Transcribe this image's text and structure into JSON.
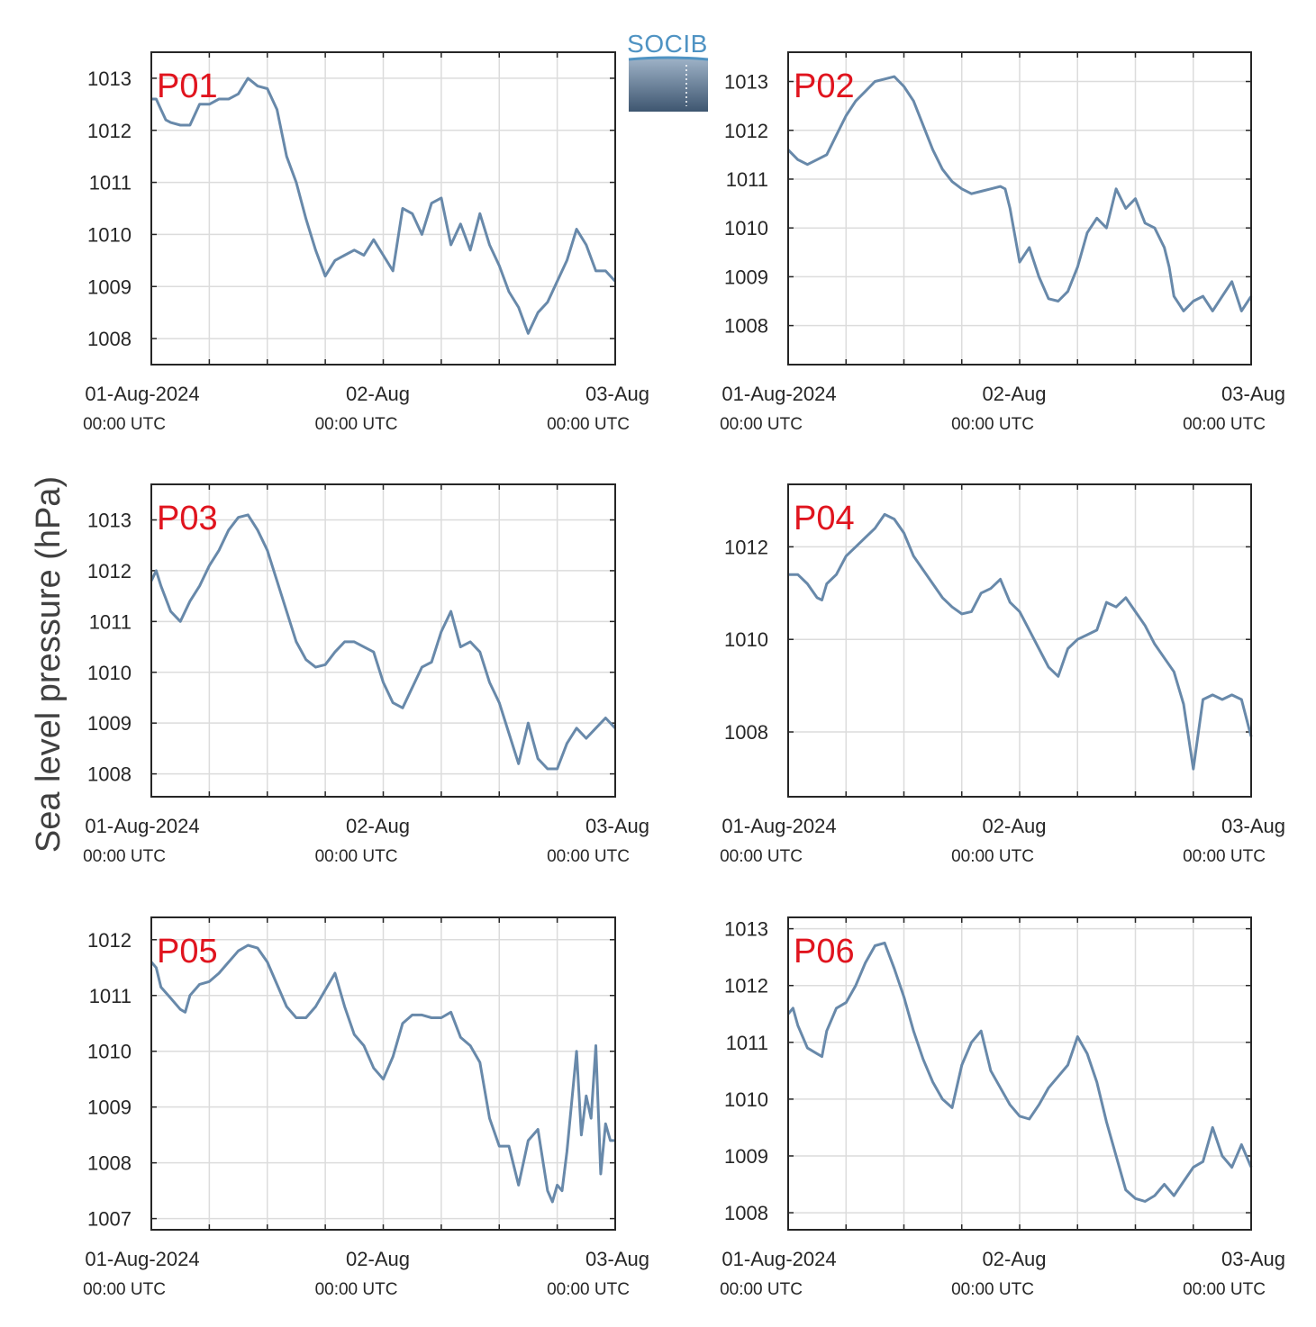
{
  "figure": {
    "ylabel": "Sea level pressure (hPa)",
    "logo_text": "SOCIB",
    "x_tick_labels": [
      "01-Aug-2024",
      "02-Aug",
      "03-Aug"
    ],
    "x_tick_sublabels": [
      "00:00 UTC",
      "00:00 UTC",
      "00:00 UTC"
    ],
    "line_color": "#6889aa",
    "title_color": "#e0141e",
    "grid_color": "#dcdcdc"
  },
  "chart_data": [
    {
      "type": "line",
      "title": "P01",
      "xlim": [
        0,
        48
      ],
      "ylim": [
        1007.5,
        1013.5
      ],
      "yticks": [
        1008,
        1009,
        1010,
        1011,
        1012,
        1013
      ],
      "x": [
        0,
        0.5,
        1,
        1.5,
        2,
        3,
        4,
        5,
        6,
        7,
        7.5,
        8,
        9,
        10,
        11,
        12,
        13,
        14,
        15,
        16,
        17,
        18,
        19,
        20,
        21,
        22,
        23,
        24,
        25,
        26,
        27,
        28,
        29,
        30,
        31,
        32,
        33,
        34,
        35,
        36,
        37,
        38,
        39,
        40,
        41,
        42,
        43,
        44,
        45,
        46,
        47,
        48
      ],
      "y": [
        1012.6,
        1012.6,
        1012.4,
        1012.2,
        1012.15,
        1012.1,
        1012.1,
        1012.5,
        1012.5,
        1012.6,
        1012.6,
        1012.6,
        1012.7,
        1013.0,
        1012.85,
        1012.8,
        1012.4,
        1011.5,
        1011.0,
        1010.3,
        1009.7,
        1009.2,
        1009.5,
        1009.6,
        1009.7,
        1009.6,
        1009.9,
        1009.6,
        1009.3,
        1010.5,
        1010.4,
        1010.0,
        1010.6,
        1010.7,
        1009.8,
        1010.2,
        1009.7,
        1010.4,
        1009.8,
        1009.4,
        1008.9,
        1008.6,
        1008.1,
        1008.5,
        1008.7,
        1009.1,
        1009.5,
        1010.1,
        1009.8,
        1009.3,
        1009.3,
        1009.1
      ]
    },
    {
      "type": "line",
      "title": "P02",
      "xlim": [
        0,
        48
      ],
      "ylim": [
        1007.2,
        1013.6
      ],
      "yticks": [
        1008,
        1009,
        1010,
        1011,
        1012,
        1013
      ],
      "x": [
        0,
        1,
        2,
        3,
        4,
        5,
        6,
        7,
        8,
        9,
        10,
        11,
        12,
        13,
        14,
        15,
        16,
        17,
        18,
        19,
        20,
        21,
        22,
        22.5,
        23,
        24,
        25,
        26,
        27,
        28,
        29,
        30,
        31,
        32,
        33,
        34,
        35,
        36,
        37,
        38,
        39,
        39.5,
        40,
        41,
        42,
        43,
        44,
        45,
        46,
        47,
        48
      ],
      "y": [
        1011.6,
        1011.4,
        1011.3,
        1011.4,
        1011.5,
        1011.9,
        1012.3,
        1012.6,
        1012.8,
        1013.0,
        1013.05,
        1013.1,
        1012.9,
        1012.6,
        1012.1,
        1011.6,
        1011.2,
        1010.95,
        1010.8,
        1010.7,
        1010.75,
        1010.8,
        1010.85,
        1010.8,
        1010.4,
        1009.3,
        1009.6,
        1009.0,
        1008.55,
        1008.5,
        1008.7,
        1009.2,
        1009.9,
        1010.2,
        1010.0,
        1010.8,
        1010.4,
        1010.6,
        1010.1,
        1010.0,
        1009.6,
        1009.2,
        1008.6,
        1008.3,
        1008.5,
        1008.6,
        1008.3,
        1008.6,
        1008.9,
        1008.3,
        1008.6
      ]
    },
    {
      "type": "line",
      "title": "P03",
      "xlim": [
        0,
        48
      ],
      "ylim": [
        1007.55,
        1013.7
      ],
      "yticks": [
        1008,
        1009,
        1010,
        1011,
        1012,
        1013
      ],
      "x": [
        0,
        0.5,
        1,
        2,
        3,
        4,
        5,
        6,
        7,
        8,
        9,
        10,
        11,
        12,
        13,
        14,
        15,
        16,
        17,
        18,
        19,
        20,
        21,
        22,
        23,
        24,
        25,
        26,
        27,
        28,
        29,
        30,
        31,
        32,
        33,
        34,
        35,
        36,
        37,
        38,
        39,
        40,
        41,
        42,
        43,
        44,
        45,
        46,
        47,
        48
      ],
      "y": [
        1011.8,
        1012.0,
        1011.7,
        1011.2,
        1011.0,
        1011.4,
        1011.7,
        1012.1,
        1012.4,
        1012.8,
        1013.05,
        1013.1,
        1012.8,
        1012.4,
        1011.8,
        1011.2,
        1010.6,
        1010.25,
        1010.1,
        1010.15,
        1010.4,
        1010.6,
        1010.6,
        1010.5,
        1010.4,
        1009.8,
        1009.4,
        1009.3,
        1009.7,
        1010.1,
        1010.2,
        1010.8,
        1011.2,
        1010.5,
        1010.6,
        1010.4,
        1009.8,
        1009.4,
        1008.8,
        1008.2,
        1009.0,
        1008.3,
        1008.1,
        1008.1,
        1008.6,
        1008.9,
        1008.7,
        1008.9,
        1009.1,
        1008.9
      ]
    },
    {
      "type": "line",
      "title": "P04",
      "xlim": [
        0,
        48
      ],
      "ylim": [
        1006.6,
        1013.35
      ],
      "yticks": [
        1008,
        1010,
        1012
      ],
      "x": [
        0,
        1,
        2,
        3,
        3.5,
        4,
        5,
        6,
        7,
        8,
        9,
        10,
        11,
        12,
        13,
        14,
        15,
        16,
        17,
        18,
        19,
        20,
        21,
        22,
        23,
        24,
        25,
        26,
        27,
        28,
        29,
        30,
        31,
        32,
        33,
        34,
        35,
        36,
        37,
        38,
        39,
        40,
        41,
        42,
        43,
        44,
        45,
        46,
        47,
        48
      ],
      "y": [
        1011.4,
        1011.4,
        1011.2,
        1010.9,
        1010.85,
        1011.2,
        1011.4,
        1011.8,
        1012.0,
        1012.2,
        1012.4,
        1012.7,
        1012.6,
        1012.3,
        1011.8,
        1011.5,
        1011.2,
        1010.9,
        1010.7,
        1010.55,
        1010.6,
        1011.0,
        1011.1,
        1011.3,
        1010.8,
        1010.6,
        1010.2,
        1009.8,
        1009.4,
        1009.2,
        1009.8,
        1010.0,
        1010.1,
        1010.2,
        1010.8,
        1010.7,
        1010.9,
        1010.6,
        1010.3,
        1009.9,
        1009.6,
        1009.3,
        1008.6,
        1007.2,
        1008.7,
        1008.8,
        1008.7,
        1008.8,
        1008.7,
        1007.9
      ]
    },
    {
      "type": "line",
      "title": "P05",
      "xlim": [
        0,
        48
      ],
      "ylim": [
        1006.8,
        1012.4
      ],
      "yticks": [
        1007,
        1008,
        1009,
        1010,
        1011,
        1012
      ],
      "x": [
        0,
        0.5,
        1,
        2,
        3,
        3.5,
        4,
        5,
        6,
        7,
        8,
        9,
        10,
        11,
        12,
        13,
        14,
        15,
        16,
        17,
        18,
        19,
        20,
        21,
        22,
        23,
        24,
        25,
        26,
        27,
        28,
        29,
        30,
        31,
        32,
        33,
        34,
        35,
        36,
        37,
        38,
        39,
        40,
        41,
        41.5,
        42,
        42.5,
        43,
        44,
        44.5,
        45,
        45.5,
        46,
        46.5,
        47,
        47.5,
        48
      ],
      "y": [
        1011.6,
        1011.5,
        1011.15,
        1010.95,
        1010.75,
        1010.7,
        1011.0,
        1011.2,
        1011.25,
        1011.4,
        1011.6,
        1011.8,
        1011.9,
        1011.85,
        1011.6,
        1011.2,
        1010.8,
        1010.6,
        1010.6,
        1010.8,
        1011.1,
        1011.4,
        1010.8,
        1010.3,
        1010.1,
        1009.7,
        1009.5,
        1009.9,
        1010.5,
        1010.65,
        1010.65,
        1010.6,
        1010.6,
        1010.7,
        1010.25,
        1010.1,
        1009.8,
        1008.8,
        1008.3,
        1008.3,
        1007.6,
        1008.4,
        1008.6,
        1007.5,
        1007.3,
        1007.6,
        1007.5,
        1008.2,
        1010.0,
        1008.5,
        1009.2,
        1008.8,
        1010.1,
        1007.8,
        1008.7,
        1008.4,
        1008.4
      ]
    },
    {
      "type": "line",
      "title": "P06",
      "xlim": [
        0,
        48
      ],
      "ylim": [
        1007.7,
        1013.2
      ],
      "yticks": [
        1008,
        1009,
        1010,
        1011,
        1012,
        1013
      ],
      "x": [
        0,
        0.5,
        1,
        2,
        3,
        3.5,
        4,
        5,
        6,
        7,
        8,
        9,
        10,
        11,
        12,
        13,
        14,
        15,
        16,
        17,
        18,
        19,
        20,
        21,
        22,
        23,
        24,
        25,
        26,
        27,
        28,
        29,
        30,
        31,
        32,
        33,
        34,
        35,
        36,
        37,
        38,
        39,
        40,
        41,
        42,
        43,
        44,
        45,
        46,
        47,
        48
      ],
      "y": [
        1011.5,
        1011.6,
        1011.3,
        1010.9,
        1010.8,
        1010.75,
        1011.2,
        1011.6,
        1011.7,
        1012.0,
        1012.4,
        1012.7,
        1012.75,
        1012.3,
        1011.8,
        1011.2,
        1010.7,
        1010.3,
        1010.0,
        1009.85,
        1010.6,
        1011.0,
        1011.2,
        1010.5,
        1010.2,
        1009.9,
        1009.7,
        1009.65,
        1009.9,
        1010.2,
        1010.4,
        1010.6,
        1011.1,
        1010.8,
        1010.3,
        1009.6,
        1009.0,
        1008.4,
        1008.25,
        1008.2,
        1008.3,
        1008.5,
        1008.3,
        1008.55,
        1008.8,
        1008.9,
        1009.5,
        1009.0,
        1008.8,
        1009.2,
        1008.8
      ]
    }
  ]
}
